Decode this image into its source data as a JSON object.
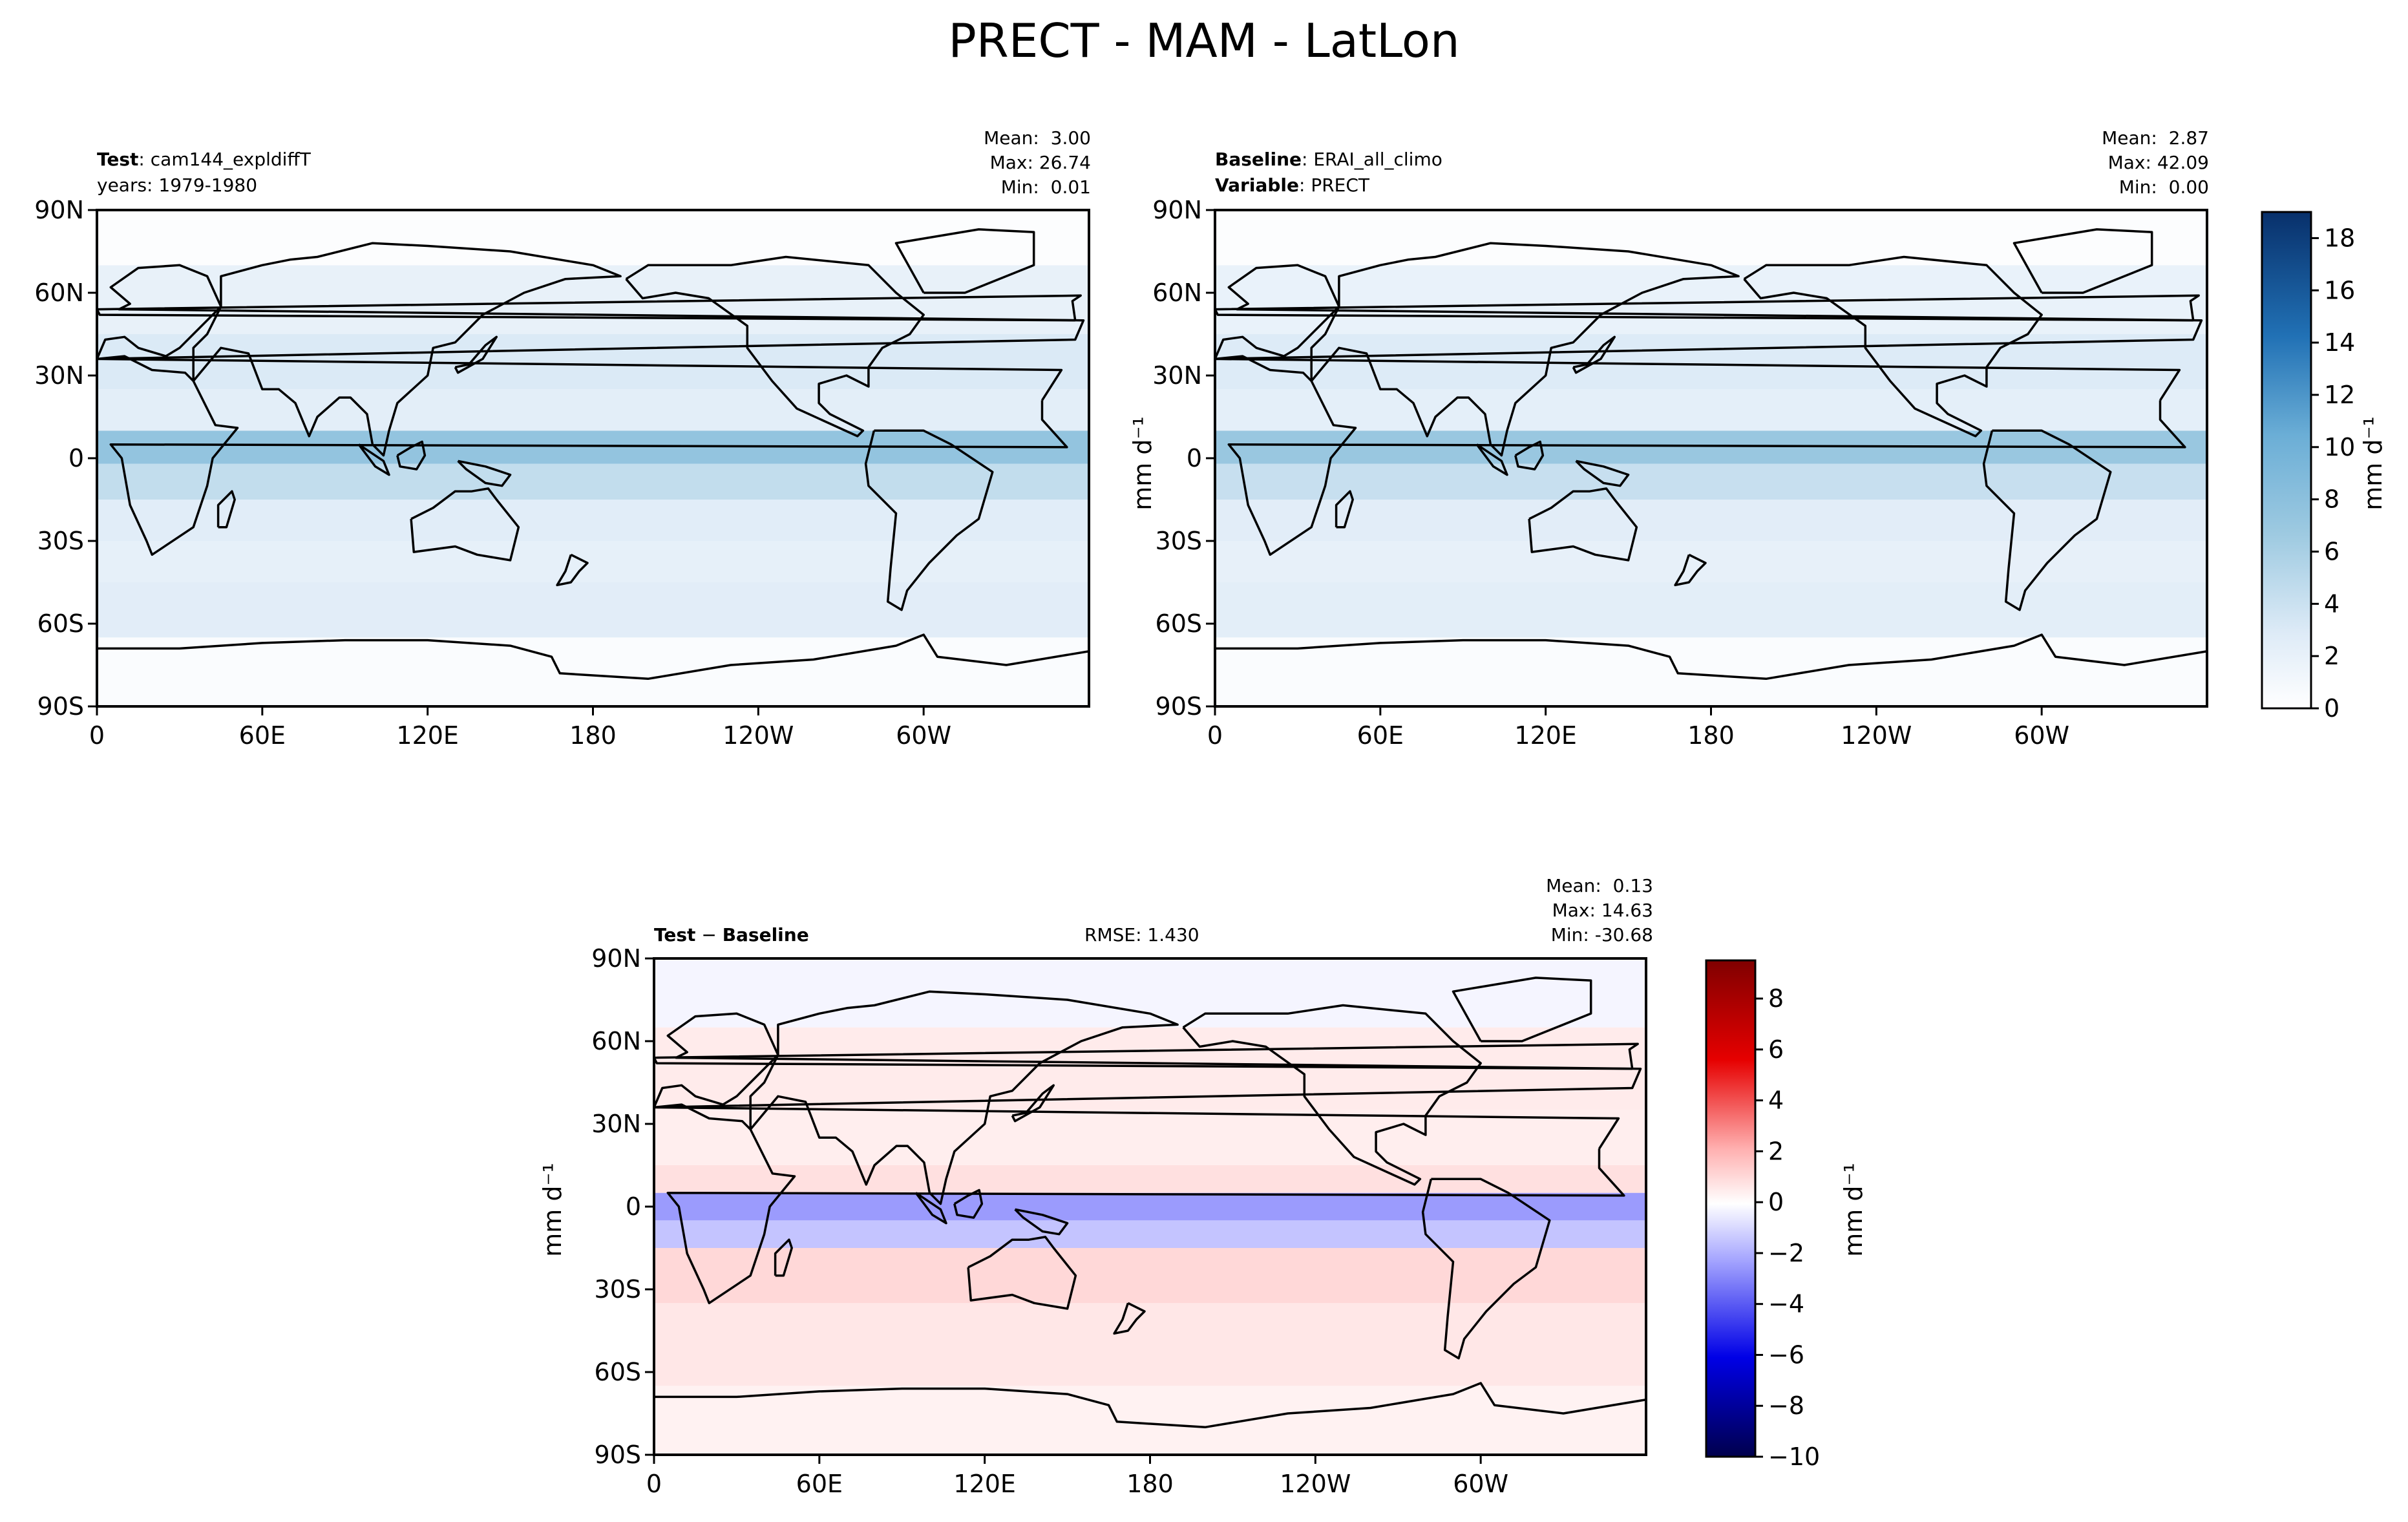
{
  "figure": {
    "title": "PRECT - MAM - LatLon"
  },
  "panels": {
    "test": {
      "label_bold": "Test",
      "label_value": "cam144_expldiffT",
      "sub_text": "years: 1979-1980",
      "mean": "Mean:  3.00",
      "max": "Max: 26.74",
      "min": "Min:  0.01"
    },
    "baseline": {
      "label_bold": "Baseline",
      "label_value": "ERAI_all_climo",
      "var_bold": "Variable",
      "var_value": "PRECT",
      "mean": "Mean:  2.87",
      "max": "Max: 42.09",
      "min": "Min:  0.00"
    },
    "diff": {
      "label_test": "Test",
      "label_base": "Baseline",
      "rmse": "RMSE: 1.430",
      "mean": "Mean:  0.13",
      "max": "Max: 14.63",
      "min": "Min: -30.68"
    }
  },
  "units": "mm d⁻¹",
  "colors": {
    "blues_max": "#08306b",
    "blues_min": "#f7fbff",
    "diff_neg": "#00004d",
    "diff_mid": "#ffffff",
    "diff_pos": "#800000"
  },
  "chart_data": [
    {
      "type": "heatmap",
      "name": "test",
      "title": "Test: cam144_expldiffT",
      "xlabel": "",
      "ylabel": "",
      "x_ticks": [
        "0",
        "60E",
        "120E",
        "180",
        "120W",
        "60W"
      ],
      "y_ticks": [
        "90N",
        "60N",
        "30N",
        "0",
        "30S",
        "60S",
        "90S"
      ],
      "xlim": [
        0,
        360
      ],
      "ylim": [
        -90,
        90
      ],
      "zlim": [
        0,
        19
      ],
      "bands": [
        {
          "lat": [
            -90,
            -65
          ],
          "value": 0.4
        },
        {
          "lat": [
            -65,
            -45
          ],
          "value": 2.5
        },
        {
          "lat": [
            -45,
            -30
          ],
          "value": 2.2
        },
        {
          "lat": [
            -30,
            -15
          ],
          "value": 2.6
        },
        {
          "lat": [
            -15,
            -2
          ],
          "value": 4.5
        },
        {
          "lat": [
            -2,
            10
          ],
          "value": 7.5
        },
        {
          "lat": [
            10,
            25
          ],
          "value": 2.4
        },
        {
          "lat": [
            25,
            45
          ],
          "value": 3.0
        },
        {
          "lat": [
            45,
            70
          ],
          "value": 2.0
        },
        {
          "lat": [
            70,
            90
          ],
          "value": 0.3
        }
      ]
    },
    {
      "type": "heatmap",
      "name": "baseline",
      "title": "Baseline: ERAI_all_climo",
      "xlabel": "",
      "ylabel": "mm d⁻¹",
      "x_ticks": [
        "0",
        "60E",
        "120E",
        "180",
        "120W",
        "60W"
      ],
      "y_ticks": [
        "90N",
        "60N",
        "30N",
        "0",
        "30S",
        "60S",
        "90S"
      ],
      "xlim": [
        0,
        360
      ],
      "ylim": [
        -90,
        90
      ],
      "zlim": [
        0,
        19
      ],
      "colorbar_ticks": [
        "0",
        "2",
        "4",
        "6",
        "8",
        "10",
        "12",
        "14",
        "16",
        "18"
      ],
      "bands": [
        {
          "lat": [
            -90,
            -65
          ],
          "value": 0.4
        },
        {
          "lat": [
            -65,
            -45
          ],
          "value": 2.4
        },
        {
          "lat": [
            -45,
            -30
          ],
          "value": 2.1
        },
        {
          "lat": [
            -30,
            -15
          ],
          "value": 2.5
        },
        {
          "lat": [
            -15,
            -2
          ],
          "value": 4.2
        },
        {
          "lat": [
            -2,
            10
          ],
          "value": 7.0
        },
        {
          "lat": [
            10,
            25
          ],
          "value": 2.3
        },
        {
          "lat": [
            25,
            45
          ],
          "value": 2.9
        },
        {
          "lat": [
            45,
            70
          ],
          "value": 1.9
        },
        {
          "lat": [
            70,
            90
          ],
          "value": 0.3
        }
      ]
    },
    {
      "type": "heatmap",
      "name": "diff",
      "title": "Test − Baseline",
      "xlabel": "",
      "ylabel": "mm d⁻¹",
      "x_ticks": [
        "0",
        "60E",
        "120E",
        "180",
        "120W",
        "60W"
      ],
      "y_ticks": [
        "90N",
        "60N",
        "30N",
        "0",
        "30S",
        "60S",
        "90S"
      ],
      "xlim": [
        0,
        360
      ],
      "ylim": [
        -90,
        90
      ],
      "zlim": [
        -10,
        9.5
      ],
      "colorbar_ticks": [
        "−10",
        "−8",
        "−6",
        "−4",
        "−2",
        "0",
        "2",
        "4",
        "6",
        "8"
      ],
      "bands": [
        {
          "lat": [
            -90,
            -65
          ],
          "value": 0.3
        },
        {
          "lat": [
            -65,
            -35
          ],
          "value": 0.6
        },
        {
          "lat": [
            -35,
            -15
          ],
          "value": 1.0
        },
        {
          "lat": [
            -15,
            -5
          ],
          "value": -1.5
        },
        {
          "lat": [
            -5,
            5
          ],
          "value": -2.5
        },
        {
          "lat": [
            5,
            15
          ],
          "value": 0.8
        },
        {
          "lat": [
            15,
            35
          ],
          "value": 0.4
        },
        {
          "lat": [
            35,
            65
          ],
          "value": 0.5
        },
        {
          "lat": [
            65,
            90
          ],
          "value": -0.3
        }
      ]
    }
  ]
}
